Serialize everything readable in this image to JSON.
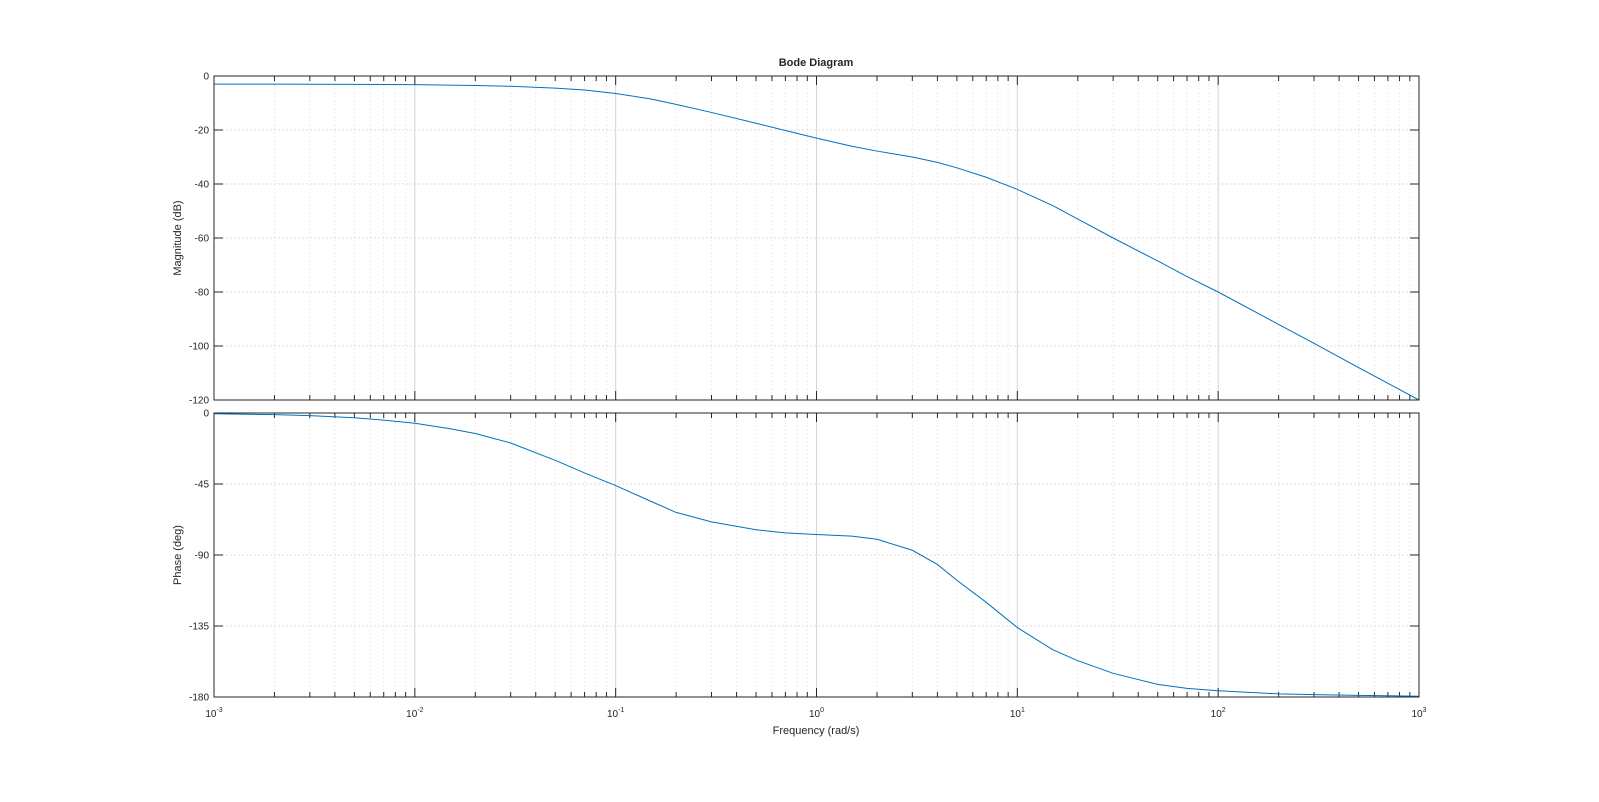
{
  "chart_data": [
    {
      "type": "line",
      "title": "Bode Diagram",
      "xlabel": "",
      "ylabel": "Magnitude (dB)",
      "xscale": "log",
      "xlim": [
        0.001,
        1000
      ],
      "ylim": [
        -120,
        0
      ],
      "yticks": [
        0,
        -20,
        -40,
        -60,
        -80,
        -100,
        -120
      ],
      "grid": true,
      "color": "#0072BD",
      "series": [
        {
          "x": [
            0.001,
            0.002,
            0.005,
            0.01,
            0.02,
            0.03,
            0.05,
            0.07,
            0.1,
            0.15,
            0.2,
            0.3,
            0.5,
            0.7,
            1,
            1.5,
            2,
            3,
            4,
            5,
            7,
            10,
            15,
            20,
            30,
            50,
            70,
            100,
            200,
            300,
            500,
            700,
            1000
          ],
          "y": [
            -3,
            -3.02,
            -3.1,
            -3.2,
            -3.5,
            -3.8,
            -4.5,
            -5.2,
            -6.5,
            -8.5,
            -10.5,
            -13.5,
            -17.5,
            -20.2,
            -23,
            -26,
            -27.8,
            -30,
            -32,
            -34,
            -37.5,
            -42,
            -48,
            -53,
            -60,
            -68.5,
            -74.3,
            -80,
            -92,
            -99,
            -108,
            -113.8,
            -120
          ]
        }
      ]
    },
    {
      "type": "line",
      "xlabel": "Frequency  (rad/s)",
      "ylabel": "Phase (deg)",
      "xscale": "log",
      "xlim": [
        0.001,
        1000
      ],
      "ylim": [
        -180,
        0
      ],
      "yticks": [
        0,
        -45,
        -90,
        -135,
        -180
      ],
      "xticks": [
        {
          "base": "10",
          "exp": "-3"
        },
        {
          "base": "10",
          "exp": "-2"
        },
        {
          "base": "10",
          "exp": "-1"
        },
        {
          "base": "10",
          "exp": "0"
        },
        {
          "base": "10",
          "exp": "1"
        },
        {
          "base": "10",
          "exp": "2"
        },
        {
          "base": "10",
          "exp": "3"
        }
      ],
      "grid": true,
      "color": "#0072BD",
      "series": [
        {
          "x": [
            0.001,
            0.002,
            0.003,
            0.005,
            0.007,
            0.01,
            0.015,
            0.02,
            0.03,
            0.05,
            0.07,
            0.1,
            0.15,
            0.2,
            0.3,
            0.5,
            0.7,
            1,
            1.5,
            2,
            3,
            4,
            5,
            7,
            10,
            15,
            20,
            30,
            50,
            70,
            100,
            200,
            300,
            500,
            700,
            1000
          ],
          "y": [
            -0.5,
            -1,
            -1.7,
            -3,
            -4.5,
            -6.5,
            -10,
            -13,
            -19,
            -30,
            -38,
            -46,
            -56,
            -63,
            -69,
            -74,
            -76,
            -77,
            -78,
            -80,
            -87,
            -96,
            -106,
            -120,
            -136,
            -150,
            -157,
            -165,
            -172,
            -174.5,
            -176,
            -178,
            -178.5,
            -179,
            -179.2,
            -179.5
          ]
        }
      ]
    }
  ]
}
